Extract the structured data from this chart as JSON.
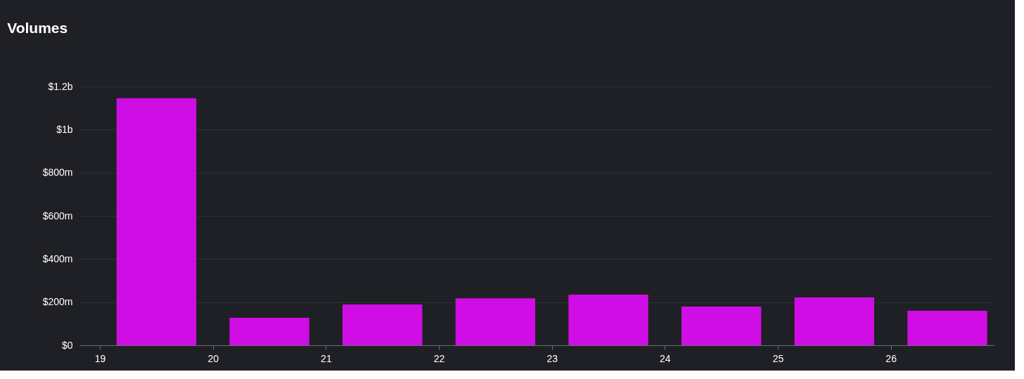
{
  "chart_data": {
    "type": "bar",
    "title": "Volumes",
    "x": [
      19.5,
      20.5,
      21.5,
      22.5,
      23.5,
      24.5,
      25.5,
      26.5
    ],
    "values": [
      1145000000,
      127000000,
      189000000,
      218000000,
      235000000,
      179000000,
      222000000,
      160000000
    ],
    "color": "#d10de6",
    "xlim": [
      18.85,
      26.88
    ],
    "xticks": [
      19,
      20,
      21,
      22,
      23,
      24,
      25,
      26
    ],
    "ylim": [
      0,
      1200000000
    ],
    "yticks": [
      {
        "value": 0,
        "label": "$0"
      },
      {
        "value": 200000000,
        "label": "$200m"
      },
      {
        "value": 400000000,
        "label": "$400m"
      },
      {
        "value": 600000000,
        "label": "$600m"
      },
      {
        "value": 800000000,
        "label": "$800m"
      },
      {
        "value": 1000000000,
        "label": "$1b"
      },
      {
        "value": 1200000000,
        "label": "$1.2b"
      }
    ],
    "grid": "y"
  }
}
